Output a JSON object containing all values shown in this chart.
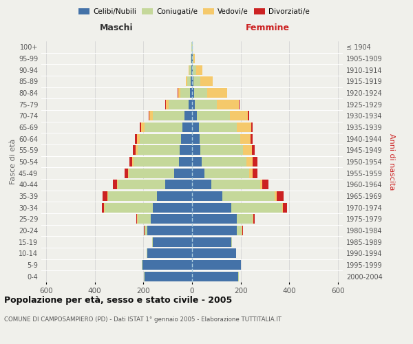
{
  "age_groups": [
    "0-4",
    "5-9",
    "10-14",
    "15-19",
    "20-24",
    "25-29",
    "30-34",
    "35-39",
    "40-44",
    "45-49",
    "50-54",
    "55-59",
    "60-64",
    "65-69",
    "70-74",
    "75-79",
    "80-84",
    "85-89",
    "90-94",
    "95-99",
    "100+"
  ],
  "birth_years": [
    "2000-2004",
    "1995-1999",
    "1990-1994",
    "1985-1989",
    "1980-1984",
    "1975-1979",
    "1970-1974",
    "1965-1969",
    "1960-1964",
    "1955-1959",
    "1950-1954",
    "1945-1949",
    "1940-1944",
    "1935-1939",
    "1930-1934",
    "1925-1929",
    "1920-1924",
    "1915-1919",
    "1910-1914",
    "1905-1909",
    "≤ 1904"
  ],
  "maschi": {
    "celibi": [
      195,
      205,
      185,
      160,
      185,
      170,
      160,
      145,
      110,
      75,
      55,
      50,
      45,
      40,
      30,
      15,
      8,
      5,
      3,
      2,
      1
    ],
    "coniugati": [
      2,
      2,
      2,
      5,
      10,
      55,
      200,
      200,
      195,
      185,
      185,
      175,
      170,
      155,
      130,
      80,
      40,
      15,
      8,
      3,
      1
    ],
    "vedovi": [
      0,
      0,
      0,
      0,
      1,
      1,
      2,
      3,
      3,
      3,
      5,
      8,
      12,
      15,
      15,
      12,
      10,
      5,
      2,
      1,
      0
    ],
    "divorziati": [
      0,
      0,
      0,
      0,
      1,
      3,
      10,
      20,
      18,
      15,
      12,
      10,
      8,
      5,
      3,
      2,
      1,
      0,
      0,
      0,
      0
    ]
  },
  "femmine": {
    "nubili": [
      190,
      200,
      180,
      160,
      185,
      185,
      160,
      125,
      80,
      50,
      40,
      35,
      32,
      28,
      20,
      12,
      8,
      5,
      3,
      2,
      1
    ],
    "coniugate": [
      2,
      2,
      2,
      5,
      20,
      65,
      210,
      215,
      200,
      185,
      185,
      175,
      165,
      155,
      135,
      90,
      55,
      30,
      15,
      4,
      1
    ],
    "vedove": [
      0,
      0,
      0,
      0,
      2,
      3,
      5,
      8,
      10,
      15,
      25,
      35,
      45,
      60,
      75,
      90,
      80,
      50,
      25,
      5,
      1
    ],
    "divorziate": [
      0,
      0,
      0,
      0,
      2,
      5,
      15,
      28,
      25,
      20,
      18,
      12,
      8,
      5,
      4,
      3,
      2,
      1,
      0,
      0,
      0
    ]
  },
  "colors": {
    "celibi": "#4472a8",
    "coniugati": "#c5d89a",
    "vedovi": "#f5c96b",
    "divorziati": "#cc2222"
  },
  "xlim": 620,
  "title": "Popolazione per età, sesso e stato civile - 2005",
  "subtitle": "COMUNE DI CAMPOSAMPIERO (PD) - Dati ISTAT 1° gennaio 2005 - Elaborazione TUTTITALIA.IT",
  "ylabel_left": "Fasce di età",
  "ylabel_right": "Anni di nascita",
  "xlabel_left": "Maschi",
  "xlabel_right": "Femmine",
  "bg_color": "#f0f0eb",
  "grid_color": "#d0d0d0"
}
